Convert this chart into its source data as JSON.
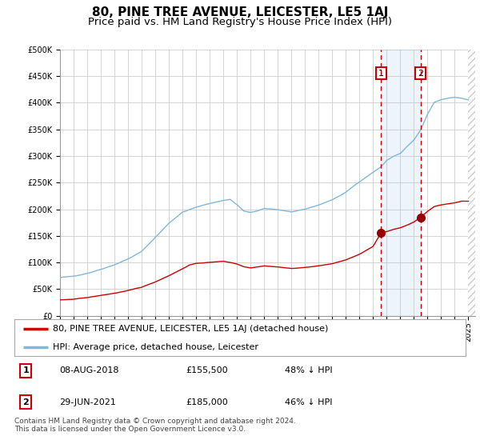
{
  "title": "80, PINE TREE AVENUE, LEICESTER, LE5 1AJ",
  "subtitle": "Price paid vs. HM Land Registry's House Price Index (HPI)",
  "ylim": [
    0,
    500000
  ],
  "yticks": [
    0,
    50000,
    100000,
    150000,
    200000,
    250000,
    300000,
    350000,
    400000,
    450000,
    500000
  ],
  "xlim_start": 1995.0,
  "xlim_end": 2025.5,
  "background_color": "#ffffff",
  "plot_bg_color": "#ffffff",
  "grid_color": "#cccccc",
  "hpi_line_color": "#7fb8d8",
  "price_line_color": "#cc0000",
  "marker_color": "#990000",
  "vline_color": "#cc0000",
  "shade_color": "#ddeeff",
  "point1_x": 2018.58,
  "point1_y": 155500,
  "point2_x": 2021.49,
  "point2_y": 185000,
  "legend_line1": "80, PINE TREE AVENUE, LEICESTER, LE5 1AJ (detached house)",
  "legend_line2": "HPI: Average price, detached house, Leicester",
  "table_row1": [
    "1",
    "08-AUG-2018",
    "£155,500",
    "48% ↓ HPI"
  ],
  "table_row2": [
    "2",
    "29-JUN-2021",
    "£185,000",
    "46% ↓ HPI"
  ],
  "footer": "Contains HM Land Registry data © Crown copyright and database right 2024.\nThis data is licensed under the Open Government Licence v3.0.",
  "title_fontsize": 11,
  "subtitle_fontsize": 9.5,
  "tick_fontsize": 7,
  "legend_fontsize": 8,
  "table_fontsize": 8,
  "footer_fontsize": 6.5
}
